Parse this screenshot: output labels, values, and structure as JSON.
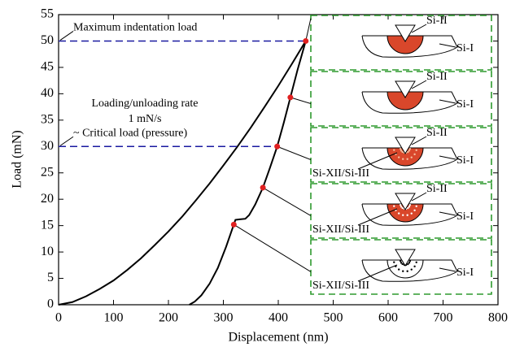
{
  "chart_data": {
    "type": "line",
    "xlabel": "Displacement (nm)",
    "ylabel": "Load (mN)",
    "xlim": [
      0,
      800
    ],
    "xticks": [
      0,
      100,
      200,
      300,
      400,
      500,
      600,
      700,
      800
    ],
    "ylim": [
      0,
      55
    ],
    "yticks": [
      0,
      5,
      10,
      15,
      20,
      25,
      30,
      35,
      40,
      45,
      50,
      55
    ],
    "series": [
      {
        "color": "#000000",
        "x": [
          0,
          25,
          50,
          75,
          100,
          125,
          150,
          175,
          200,
          225,
          250,
          275,
          300,
          325,
          350,
          375,
          400,
          425,
          450
        ],
        "values": [
          0,
          0.5,
          1.6,
          3.0,
          4.6,
          6.6,
          8.8,
          11.3,
          13.9,
          16.7,
          19.8,
          23.0,
          26.4,
          29.9,
          33.6,
          37.5,
          41.5,
          45.7,
          50
        ]
      },
      {
        "color": "#000000",
        "x": [
          450,
          435,
          422,
          410,
          398,
          385,
          372,
          358,
          347,
          340,
          330,
          322,
          319,
          305,
          290,
          275,
          260,
          248,
          238
        ],
        "values": [
          50,
          44.5,
          39.3,
          34.5,
          30,
          26,
          22.2,
          19,
          17,
          16.3,
          16.2,
          16.1,
          15.2,
          11,
          7,
          4,
          1.8,
          0.6,
          0
        ]
      }
    ],
    "points": {
      "color": "#e02020",
      "x": [
        450,
        422,
        398,
        372,
        319
      ],
      "values": [
        50,
        39.3,
        30,
        22.2,
        15.2
      ]
    },
    "annotations": [
      {
        "text": "Maximum indentation load",
        "y": 50
      },
      {
        "text": "~ Critical load (pressure)",
        "y": 30
      }
    ],
    "note": [
      "Loading/unloading rate",
      "1 mN/s"
    ],
    "dash_color": "#1a1aa0",
    "panel_color": "#2e9a2e",
    "insets": [
      {
        "top": "Si-II",
        "right": "Si-I",
        "zone": "#d9472b"
      },
      {
        "top": "Si-II",
        "right": "Si-I",
        "zone": "#d9472b"
      },
      {
        "top": "Si-II",
        "right": "Si-I",
        "bottom": "Si-XII/Si-III",
        "zone": "#d9472b",
        "dots": "#f5c0a0"
      },
      {
        "top": "Si-II",
        "right": "Si-I",
        "bottom": "Si-XII/Si-III",
        "zone": "#d9472b",
        "dots": "#ffffff"
      },
      {
        "right": "Si-I",
        "bottom": "Si-XII/Si-III",
        "zone": "#ffffff",
        "dots": "#000000"
      }
    ]
  }
}
